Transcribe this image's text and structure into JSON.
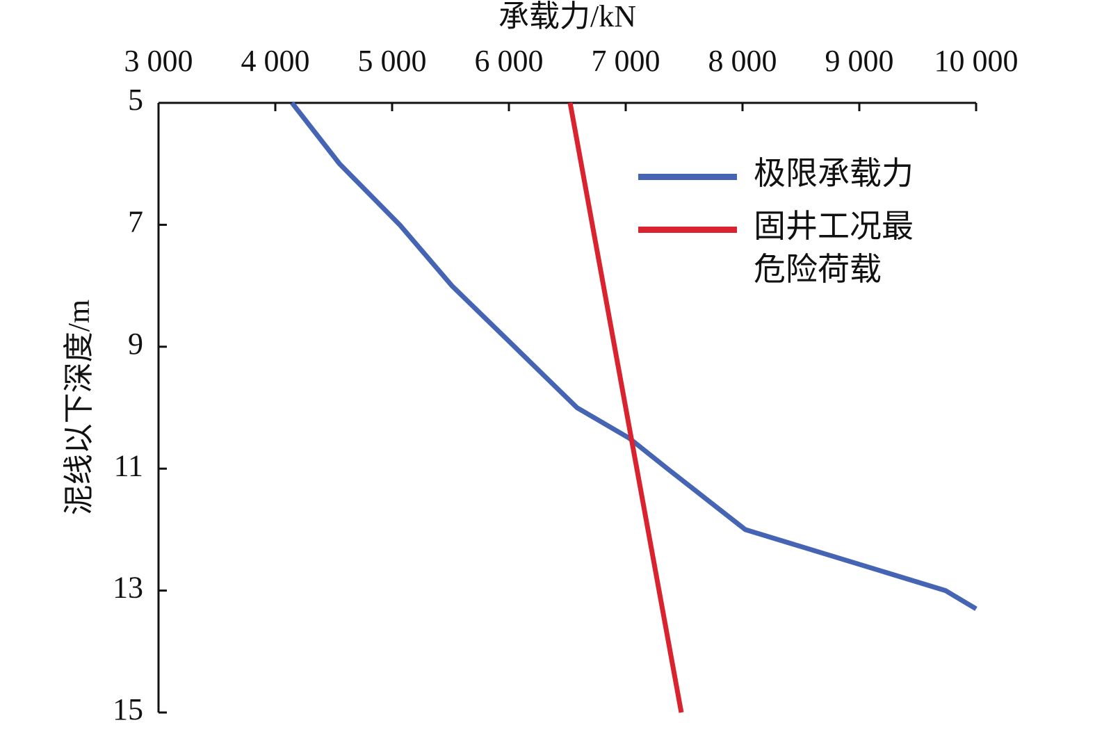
{
  "chart_data": {
    "type": "line",
    "x_label": "承载力/kN",
    "y_label": "泥线以下深度/m",
    "xlim": [
      3000,
      10000
    ],
    "xticks": [
      {
        "value": 3000,
        "label": "3 000"
      },
      {
        "value": 4000,
        "label": "4 000"
      },
      {
        "value": 5000,
        "label": "5 000"
      },
      {
        "value": 6000,
        "label": "6 000"
      },
      {
        "value": 7000,
        "label": "7 000"
      },
      {
        "value": 8000,
        "label": "8 000"
      },
      {
        "value": 9000,
        "label": "9 000"
      },
      {
        "value": 10000,
        "label": "10 000"
      }
    ],
    "ylim": [
      5,
      15
    ],
    "y_inverted": true,
    "yticks": [
      5,
      7,
      9,
      11,
      13,
      15
    ],
    "series": [
      {
        "name": "极限承载力",
        "color": "#4565b4",
        "x": [
          4143,
          4550,
          5065,
          5512,
          6048,
          6583,
          7030,
          7357,
          8024,
          9738,
          10000
        ],
        "y": [
          5,
          6,
          7,
          8,
          9,
          10,
          10.5,
          11,
          12,
          13,
          13.3
        ]
      },
      {
        "name": "固井工况最危险荷载",
        "color": "#d9232e",
        "x": [
          6524,
          7476
        ],
        "y": [
          5,
          15
        ]
      }
    ]
  }
}
